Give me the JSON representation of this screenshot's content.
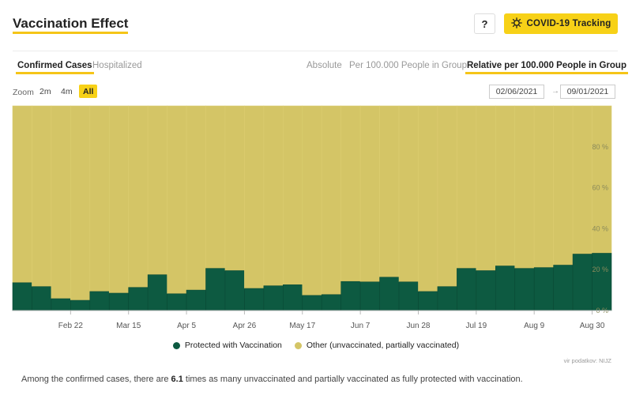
{
  "header": {
    "title": "Vaccination Effect",
    "help_label": "?",
    "tracking_label": "COVID-19 Tracking",
    "tracking_icon": "virus-icon"
  },
  "tabs": {
    "left": [
      {
        "label": "Confirmed Cases",
        "active": true
      },
      {
        "label": "Hospitalized",
        "active": false
      }
    ],
    "right": [
      {
        "label": "Absolute",
        "active": false
      },
      {
        "label": "Per 100.000 People in Group",
        "active": false
      },
      {
        "label": "Relative per 100.000 People in Group",
        "active": true
      }
    ]
  },
  "zoom": {
    "label": "Zoom",
    "options": [
      {
        "label": "2m",
        "active": false
      },
      {
        "label": "4m",
        "active": false
      },
      {
        "label": "All",
        "active": true
      }
    ]
  },
  "date_range": {
    "from": "02/06/2021",
    "separator": "→",
    "to": "09/01/2021"
  },
  "chart_data": {
    "type": "bar",
    "stacked": true,
    "x_tick_labels": [
      "Feb 22",
      "Mar 15",
      "Apr 5",
      "Apr 26",
      "May 17",
      "Jun 7",
      "Jun 28",
      "Jul 19",
      "Aug 9",
      "Aug 30"
    ],
    "y_tick_labels": [
      "0 %",
      "20 %",
      "40 %",
      "60 %",
      "80 %"
    ],
    "ylim": [
      0,
      100
    ],
    "series": [
      {
        "name": "Protected with Vaccination",
        "color": "#0d5a41",
        "values": [
          13.6,
          11.7,
          5.8,
          5.0,
          9.3,
          8.5,
          11.3,
          17.5,
          8.2,
          10.0,
          20.6,
          19.5,
          10.8,
          12.1,
          12.6,
          7.4,
          7.8,
          14.2,
          14.0,
          16.3,
          14.0,
          9.3,
          11.7,
          20.6,
          19.5,
          21.8,
          20.6,
          21.0,
          22.2,
          27.6,
          28.0
        ]
      },
      {
        "name": "Other (unvaccinated, partially vaccinated)",
        "color": "#d4c566",
        "values": [
          86.4,
          88.3,
          94.2,
          95.0,
          90.7,
          91.5,
          88.7,
          82.5,
          91.8,
          90.0,
          79.4,
          80.5,
          89.2,
          87.9,
          87.4,
          92.6,
          92.2,
          85.8,
          86.0,
          83.7,
          86.0,
          90.7,
          88.3,
          79.4,
          80.5,
          78.2,
          79.4,
          79.0,
          77.8,
          72.4,
          72.0
        ]
      }
    ],
    "grid": false,
    "legend_position": "bottom"
  },
  "source_label": "vir podatkov: NIJZ",
  "summary": {
    "prefix": "Among the confirmed cases, there are ",
    "value": "6.1",
    "suffix": " times as many unvaccinated and partially vaccinated as fully protected with vaccination."
  }
}
